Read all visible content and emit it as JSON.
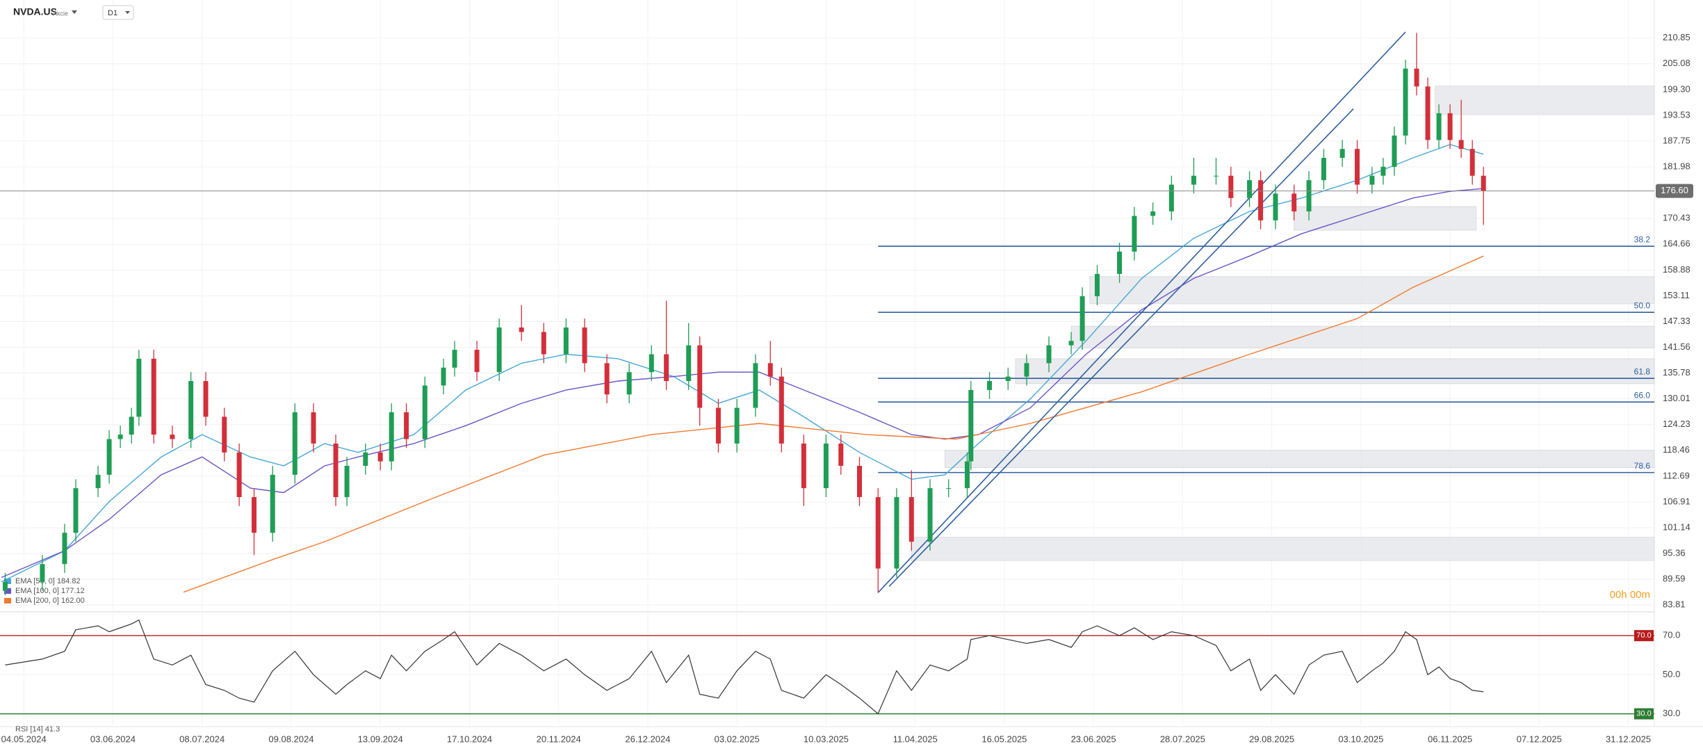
{
  "header": {
    "symbol": "NVDA.US",
    "asset_class": "Akcie",
    "timeframe": "D1"
  },
  "chart_data": [
    {
      "type": "candlestick",
      "x": [
        -5,
        5,
        11,
        14,
        20,
        23,
        26,
        29,
        31,
        35,
        40,
        45,
        49,
        54,
        58,
        62,
        67,
        73,
        78,
        84,
        87,
        92,
        96,
        99,
        103,
        108,
        113,
        116,
        122,
        128,
        134,
        140,
        146,
        151,
        157,
        163,
        169,
        173,
        179,
        182,
        187,
        192,
        197,
        201,
        204,
        210,
        216,
        220,
        225,
        230,
        235,
        239,
        244,
        249,
        254,
        255,
        260,
        265,
        270,
        276,
        282,
        285,
        289,
        295,
        299,
        304,
        309,
        315,
        321,
        325,
        330,
        333,
        337,
        342,
        346,
        350,
        355,
        359,
        363,
        366,
        369,
        372,
        375,
        378,
        381,
        384,
        387,
        390,
        393
      ],
      "open": [
        87,
        89,
        93,
        100,
        110,
        113,
        121,
        122,
        126,
        139,
        122,
        121,
        134,
        126,
        118,
        108,
        100,
        113,
        127,
        120,
        108,
        115,
        118,
        116,
        127,
        121,
        133,
        137,
        141,
        136,
        146,
        145,
        140,
        146,
        138,
        131,
        136,
        140,
        134,
        142,
        128,
        120,
        128,
        138,
        135,
        120,
        110,
        120,
        115,
        108,
        92,
        108,
        98,
        110,
        110,
        116,
        132,
        134,
        135,
        138,
        142,
        143,
        153,
        158,
        163,
        171,
        172,
        178,
        180,
        180,
        175,
        179,
        170,
        176,
        172,
        179,
        184,
        186,
        178,
        180,
        182,
        189,
        204,
        200,
        188,
        194,
        188,
        186,
        180
      ],
      "high": [
        91,
        95,
        102,
        112,
        115,
        123,
        124,
        128,
        141,
        141,
        124,
        136,
        136,
        128,
        120,
        110,
        115,
        129,
        129,
        122,
        117,
        120,
        120,
        129,
        129,
        135,
        139,
        143,
        143,
        148,
        151,
        147,
        148,
        148,
        140,
        138,
        142,
        152,
        147,
        144,
        130,
        130,
        140,
        143,
        137,
        122,
        122,
        122,
        117,
        110,
        110,
        114,
        112,
        112,
        118,
        134,
        136,
        137,
        140,
        144,
        145,
        155,
        160,
        165,
        173,
        174,
        180,
        184,
        184,
        182,
        181,
        181,
        178,
        178,
        181,
        186,
        188,
        188,
        182,
        184,
        191,
        206,
        212,
        202,
        196,
        196,
        197,
        188,
        182
      ],
      "low": [
        86,
        87,
        91,
        98,
        108,
        111,
        119,
        120,
        124,
        120,
        119,
        119,
        124,
        116,
        106,
        95,
        98,
        111,
        118,
        106,
        106,
        113,
        114,
        114,
        119,
        119,
        131,
        135,
        134,
        134,
        143,
        138,
        138,
        136,
        129,
        129,
        134,
        132,
        132,
        124,
        118,
        118,
        126,
        133,
        118,
        106,
        108,
        113,
        106,
        86.6,
        90,
        96,
        96,
        108,
        108,
        114,
        130,
        132,
        133,
        136,
        140,
        141,
        151,
        156,
        161,
        169,
        170,
        176,
        178,
        173,
        173,
        168,
        168,
        170,
        170,
        177,
        182,
        176,
        176,
        178,
        180,
        187,
        198,
        186,
        186,
        186,
        184,
        178,
        169
      ],
      "close": [
        89,
        93,
        100,
        110,
        113,
        121,
        122,
        126,
        139,
        122,
        121,
        134,
        126,
        118,
        108,
        100,
        113,
        127,
        120,
        108,
        115,
        118,
        116,
        127,
        121,
        133,
        137,
        141,
        136,
        146,
        145,
        140,
        146,
        138,
        131,
        136,
        140,
        134,
        142,
        128,
        120,
        128,
        138,
        135,
        120,
        110,
        120,
        115,
        108,
        92,
        108,
        98,
        110,
        110,
        116,
        132,
        134,
        135,
        138,
        142,
        143,
        153,
        158,
        163,
        171,
        172,
        178,
        180,
        180,
        175,
        179,
        170,
        176,
        172,
        179,
        184,
        186,
        178,
        180,
        182,
        189,
        204,
        200,
        188,
        194,
        188,
        186,
        180,
        176.6
      ],
      "up_color": "#1f9d55",
      "down_color": "#d32f3a",
      "series": [
        {
          "name": "EMA [50, 0]",
          "legend_value": "184.82",
          "color": "#45a6d6",
          "x": [
            -6,
            11,
            23,
            37,
            48,
            61,
            70,
            81,
            90,
            105,
            119,
            134,
            146,
            160,
            175,
            187,
            198,
            210,
            225,
            239,
            248,
            257,
            271,
            286,
            301,
            315,
            330,
            344,
            359,
            374,
            384,
            393
          ],
          "values": [
            89,
            96,
            107,
            117,
            122,
            117,
            115,
            120,
            118,
            122,
            132,
            138,
            140,
            139,
            135,
            129,
            132,
            126,
            118,
            112,
            113,
            120,
            130,
            143,
            157,
            166,
            172,
            175,
            179,
            184,
            187,
            184.82
          ]
        },
        {
          "name": "EMA [100, 0]",
          "legend_value": "177.12",
          "color": "#6a52c8",
          "x": [
            -6,
            11,
            23,
            37,
            48,
            61,
            70,
            81,
            90,
            105,
            119,
            134,
            146,
            160,
            175,
            187,
            198,
            210,
            225,
            239,
            248,
            257,
            271,
            286,
            301,
            315,
            330,
            344,
            359,
            374,
            384,
            393
          ],
          "values": [
            90,
            96,
            103,
            113,
            117,
            110,
            109,
            115,
            117,
            120,
            124,
            129,
            132,
            134,
            135,
            136,
            136,
            132,
            127,
            122,
            121,
            122,
            128,
            140,
            150,
            157,
            162,
            167,
            171,
            175,
            176.5,
            177.12
          ]
        },
        {
          "name": "EMA [200, 0]",
          "legend_value": "162.00",
          "color": "#f07a2e",
          "x": [
            43,
            67,
            81,
            111,
            140,
            169,
            198,
            227,
            251,
            271,
            301,
            330,
            359,
            374,
            393
          ],
          "values": [
            86.7,
            94,
            98,
            108,
            117.4,
            122,
            124.5,
            122,
            121,
            124.5,
            131.6,
            140,
            148,
            155,
            162
          ]
        }
      ],
      "fib_start": 230,
      "fib_color": "#2f5f9e",
      "fib_levels": [
        {
          "label": "38.2",
          "value": 164.2
        },
        {
          "label": "50.0",
          "value": 149.4
        },
        {
          "label": "61.8",
          "value": 134.6
        },
        {
          "label": "66.0",
          "value": 129.3
        },
        {
          "label": "78.6",
          "value": 113.5
        }
      ],
      "zones": [
        {
          "x": [
            380,
            439
          ],
          "y": [
            193.8,
            200.1
          ]
        },
        {
          "x": [
            342,
            391
          ],
          "y": [
            167.8,
            173.1
          ]
        },
        {
          "x": [
            287,
            439
          ],
          "y": [
            151.3,
            157.4
          ]
        },
        {
          "x": [
            282,
            439
          ],
          "y": [
            141.4,
            146.3
          ]
        },
        {
          "x": [
            267,
            439
          ],
          "y": [
            133.4,
            139
          ]
        },
        {
          "x": [
            248,
            439
          ],
          "y": [
            114.6,
            118.5
          ]
        },
        {
          "x": [
            239,
            439
          ],
          "y": [
            93.8,
            99
          ]
        }
      ],
      "trend_lines": [
        {
          "x": [
            230,
            372
          ],
          "y": [
            86.6,
            212.2
          ]
        },
        {
          "x": [
            233,
            358
          ],
          "y": [
            88,
            195
          ]
        }
      ],
      "last_price": {
        "value": 176.6,
        "label": "176.60"
      },
      "countdown": "00h 00m",
      "xlim": [
        -6.4,
        439
      ],
      "xticks": [
        {
          "value": 0,
          "label": "04.05.2024"
        },
        {
          "value": 24,
          "label": "03.06.2024"
        },
        {
          "value": 48,
          "label": "08.07.2024"
        },
        {
          "value": 72,
          "label": "09.08.2024"
        },
        {
          "value": 96,
          "label": "13.09.2024"
        },
        {
          "value": 120,
          "label": "17.10.2024"
        },
        {
          "value": 144,
          "label": "20.11.2024"
        },
        {
          "value": 168,
          "label": "26.12.2024"
        },
        {
          "value": 192,
          "label": "03.02.2025"
        },
        {
          "value": 216,
          "label": "10.03.2025"
        },
        {
          "value": 240,
          "label": "11.04.2025"
        },
        {
          "value": 264,
          "label": "16.05.2025"
        },
        {
          "value": 288,
          "label": "23.06.2025"
        },
        {
          "value": 312,
          "label": "28.07.2025"
        },
        {
          "value": 336,
          "label": "29.08.2025"
        },
        {
          "value": 360,
          "label": "03.10.2025"
        },
        {
          "value": 384,
          "label": "06.11.2025"
        },
        {
          "value": 408,
          "label": "07.12.2025"
        },
        {
          "value": 432,
          "label": "31.12.2025"
        }
      ],
      "ylim": [
        82.6,
        219.37
      ],
      "yticks": [
        210.85,
        205.08,
        {
          "value": 199.3,
          "label": "199.30"
        },
        193.53,
        187.75,
        181.98,
        170.43,
        164.66,
        158.88,
        153.11,
        147.33,
        141.56,
        135.78,
        130.01,
        124.23,
        118.46,
        112.69,
        106.91,
        101.14,
        95.36,
        89.59,
        83.81
      ],
      "grid": true
    },
    {
      "type": "line",
      "name": "RSI [14]",
      "color": "#333333",
      "x": [
        -5,
        5,
        11,
        14,
        20,
        23,
        26,
        29,
        31,
        35,
        40,
        45,
        49,
        54,
        58,
        62,
        67,
        73,
        78,
        84,
        87,
        92,
        96,
        99,
        103,
        108,
        113,
        116,
        122,
        128,
        134,
        140,
        146,
        151,
        157,
        163,
        169,
        173,
        179,
        182,
        187,
        192,
        197,
        201,
        204,
        210,
        216,
        220,
        225,
        230,
        235,
        239,
        244,
        249,
        254,
        255,
        260,
        265,
        270,
        276,
        282,
        285,
        289,
        295,
        299,
        304,
        309,
        315,
        321,
        325,
        330,
        333,
        337,
        342,
        346,
        350,
        355,
        359,
        363,
        366,
        369,
        372,
        375,
        378,
        381,
        384,
        387,
        390,
        393
      ],
      "values": [
        55,
        58,
        62,
        73,
        75,
        72,
        74,
        76,
        78,
        58,
        55,
        60,
        45,
        42,
        38,
        36,
        52,
        62,
        50,
        40,
        45,
        52,
        48,
        60,
        52,
        62,
        68,
        72,
        55,
        66,
        60,
        52,
        58,
        50,
        42,
        48,
        62,
        46,
        60,
        40,
        38,
        52,
        62,
        58,
        42,
        38,
        50,
        45,
        38,
        30,
        52,
        42,
        55,
        52,
        58,
        68,
        70,
        68,
        66,
        68,
        64,
        72,
        75,
        70,
        74,
        68,
        72,
        70,
        65,
        52,
        58,
        42,
        50,
        40,
        55,
        60,
        62,
        46,
        52,
        56,
        62,
        72,
        68,
        50,
        54,
        48,
        46,
        42,
        41.3
      ],
      "levels": [
        {
          "value": 70,
          "label": "70.0",
          "color": "#b71c1c"
        },
        {
          "value": 30,
          "label": "30.0",
          "color": "#2e7d32"
        }
      ],
      "xlim": [
        -6.4,
        439
      ],
      "ylim": [
        25.6,
        81.1
      ],
      "yticks": [
        {
          "value": 30,
          "label": "30.0"
        },
        {
          "value": 50,
          "label": "50.0"
        },
        {
          "value": 70,
          "label": "70.0"
        }
      ],
      "grid": true
    }
  ]
}
